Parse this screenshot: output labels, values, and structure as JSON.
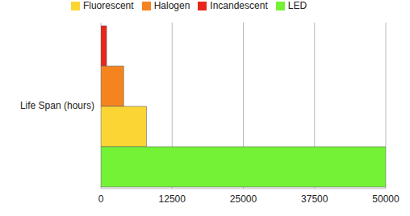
{
  "chart_data": {
    "type": "bar",
    "orientation": "horizontal",
    "categories": [
      "Life Span (hours)"
    ],
    "series": [
      {
        "name": "Incandescent",
        "color": "#e8261c",
        "values": [
          1000
        ]
      },
      {
        "name": "Halogen",
        "color": "#f5841f",
        "values": [
          4000
        ]
      },
      {
        "name": "Fluorescent",
        "color": "#fbd533",
        "values": [
          8000
        ]
      },
      {
        "name": "LED",
        "color": "#74f236",
        "values": [
          50000
        ]
      }
    ],
    "xlim": [
      0,
      50000
    ],
    "xticks": [
      0,
      12500,
      25000,
      37500,
      50000
    ],
    "grid": true,
    "legend": "top"
  }
}
